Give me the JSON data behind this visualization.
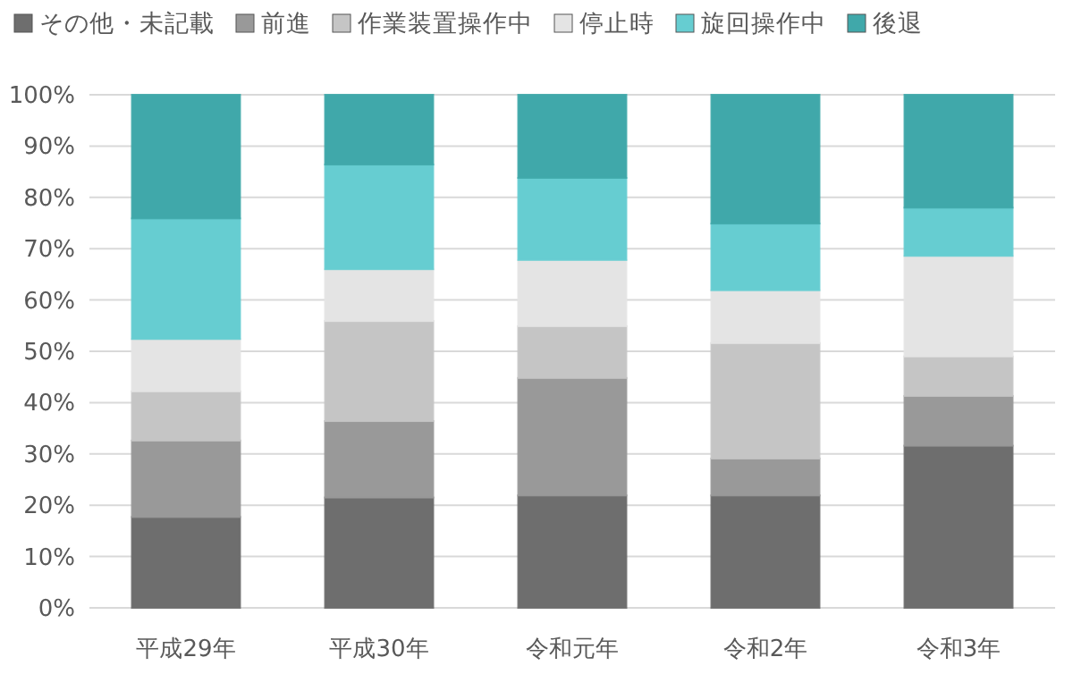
{
  "chart_data": {
    "type": "bar",
    "stacked": true,
    "legend": "top",
    "grid": "y",
    "categories": [
      "平成29年",
      "平成30年",
      "令和元年",
      "令和2年",
      "令和3年"
    ],
    "ylim": [
      0,
      100
    ],
    "yticks": [
      {
        "value": 0,
        "label": "0%"
      },
      {
        "value": 10,
        "label": "10%"
      },
      {
        "value": 20,
        "label": "20%"
      },
      {
        "value": 30,
        "label": "30%"
      },
      {
        "value": 40,
        "label": "40%"
      },
      {
        "value": 50,
        "label": "50%"
      },
      {
        "value": 60,
        "label": "60%"
      },
      {
        "value": 70,
        "label": "70%"
      },
      {
        "value": 80,
        "label": "80%"
      },
      {
        "value": 90,
        "label": "90%"
      },
      {
        "value": 100,
        "label": "100%"
      }
    ],
    "series": [
      {
        "name": "その他・未記載",
        "color": "#6e6e6e",
        "values": [
          17.7,
          21.5,
          21.9,
          21.9,
          31.6
        ]
      },
      {
        "name": "前進",
        "color": "#999999",
        "values": [
          14.9,
          14.9,
          22.9,
          7.2,
          9.7
        ]
      },
      {
        "name": "作業装置操作中",
        "color": "#c5c5c5",
        "values": [
          9.6,
          19.5,
          10.1,
          22.5,
          7.7
        ]
      },
      {
        "name": "停止時",
        "color": "#e4e4e4",
        "values": [
          10.2,
          10.1,
          12.9,
          10.3,
          19.6
        ]
      },
      {
        "name": "旋回操作中",
        "color": "#66cdd1",
        "values": [
          23.5,
          20.4,
          16.0,
          13.0,
          9.4
        ]
      },
      {
        "name": "後退",
        "color": "#40a8aa",
        "values": [
          24.1,
          13.6,
          16.2,
          25.1,
          22.0
        ]
      }
    ]
  }
}
